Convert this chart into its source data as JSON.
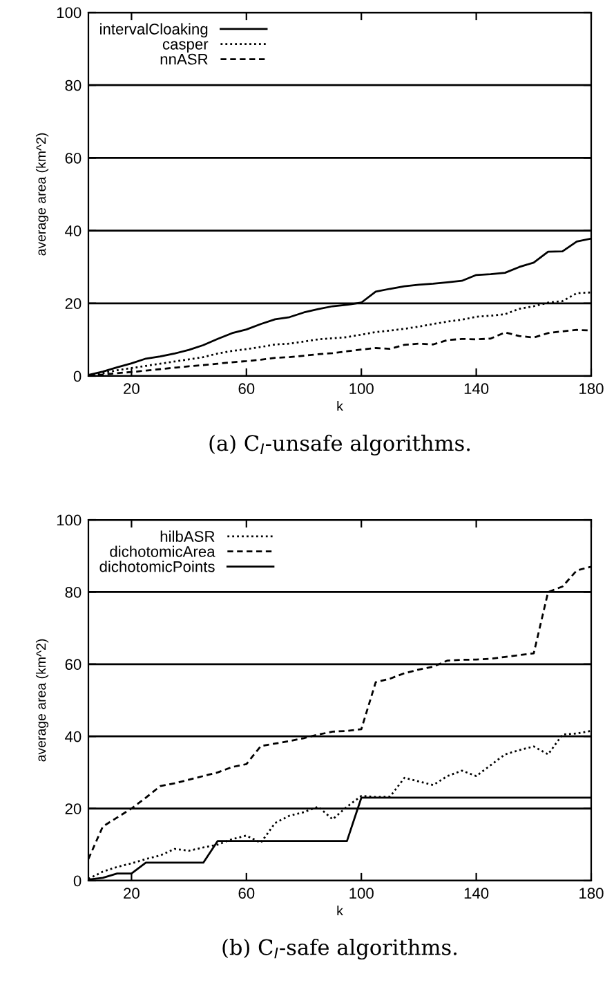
{
  "chart_data": [
    {
      "type": "line",
      "title": "(a) C$_{I}$-unsafe algorithms.",
      "xlabel": "k",
      "ylabel": "average area (km^2)",
      "x": [
        5,
        10,
        15,
        20,
        25,
        30,
        35,
        40,
        45,
        50,
        55,
        60,
        65,
        70,
        75,
        80,
        85,
        90,
        95,
        100,
        105,
        110,
        115,
        120,
        125,
        130,
        135,
        140,
        145,
        150,
        155,
        160,
        165,
        170,
        175,
        180
      ],
      "xlim": [
        5,
        180
      ],
      "ylim": [
        0,
        100
      ],
      "xticks": [
        20,
        60,
        100,
        140,
        180
      ],
      "yticks": [
        0,
        20,
        40,
        60,
        80,
        100
      ],
      "grid": "y",
      "legend": "top left",
      "series": [
        {
          "name": "intervalCloaking",
          "color": "#000000",
          "line_style": "solid",
          "values": [
            0.3,
            1.2,
            2.4,
            3.5,
            4.8,
            5.4,
            6.2,
            7.2,
            8.5,
            10.2,
            11.8,
            12.8,
            14.3,
            15.6,
            16.2,
            17.5,
            18.4,
            19.2,
            19.6,
            20.2,
            23.2,
            24,
            24.7,
            25.1,
            25.4,
            25.8,
            26.2,
            27.8,
            28,
            28.4,
            30,
            31.2,
            34.2,
            34.3,
            37,
            37.8
          ]
        },
        {
          "name": "casper",
          "color": "#000000",
          "line_style": "dotted",
          "values": [
            0.2,
            0.8,
            1.6,
            2.2,
            2.8,
            3.4,
            4,
            4.6,
            5.2,
            6.2,
            6.9,
            7.4,
            8,
            8.7,
            8.9,
            9.5,
            10.1,
            10.4,
            10.7,
            11.4,
            12.1,
            12.5,
            13,
            13.6,
            14.3,
            15,
            15.5,
            16.3,
            16.6,
            17,
            18.5,
            19.2,
            20.2,
            20.6,
            22.8,
            23
          ]
        },
        {
          "name": "nnASR",
          "color": "#000000",
          "line_style": "dashed",
          "values": [
            0.1,
            0.4,
            0.8,
            1.1,
            1.5,
            1.9,
            2.3,
            2.7,
            3,
            3.4,
            3.8,
            4.1,
            4.5,
            5,
            5.2,
            5.6,
            6,
            6.3,
            6.8,
            7.3,
            7.7,
            7.5,
            8.6,
            8.9,
            8.7,
            9.9,
            10.2,
            10.1,
            10.3,
            12,
            11,
            10.6,
            11.8,
            12.3,
            12.7,
            12.5
          ]
        }
      ]
    },
    {
      "type": "line",
      "title": "(b) C$_{I}$-safe algorithms.",
      "xlabel": "k",
      "ylabel": "average area (km^2)",
      "x": [
        5,
        10,
        15,
        20,
        25,
        30,
        35,
        40,
        45,
        50,
        55,
        60,
        65,
        70,
        75,
        80,
        85,
        90,
        95,
        100,
        105,
        110,
        115,
        120,
        125,
        130,
        135,
        140,
        145,
        150,
        155,
        160,
        165,
        170,
        175,
        180
      ],
      "xlim": [
        5,
        180
      ],
      "ylim": [
        0,
        100
      ],
      "xticks": [
        20,
        60,
        100,
        140,
        180
      ],
      "yticks": [
        0,
        20,
        40,
        60,
        80,
        100
      ],
      "grid": "y",
      "legend": "top left",
      "series": [
        {
          "name": "hilbASR",
          "color": "#000000",
          "line_style": "dotted",
          "values": [
            0.5,
            2.5,
            3.8,
            4.8,
            6,
            7,
            8.8,
            8.3,
            9.2,
            10,
            11.5,
            12.5,
            10.5,
            16,
            18,
            19,
            20.5,
            17,
            20.5,
            23.5,
            23.2,
            23.3,
            28.5,
            27.5,
            26.5,
            29,
            30.5,
            29,
            32,
            35,
            36.2,
            37.2,
            35,
            40.5,
            40.8,
            41.5
          ]
        },
        {
          "name": "dichotomicArea",
          "color": "#000000",
          "line_style": "dashed",
          "values": [
            6,
            15,
            17.5,
            20,
            23,
            26.2,
            27,
            28,
            29,
            30,
            31.5,
            32.3,
            37.3,
            38,
            38.7,
            39.5,
            40.5,
            41.3,
            41.5,
            42,
            55,
            56,
            57.5,
            58.5,
            59.3,
            61,
            61.2,
            61.3,
            61.5,
            62,
            62.5,
            63,
            80,
            81.5,
            86,
            87
          ]
        },
        {
          "name": "dichotomicPoints",
          "color": "#000000",
          "line_style": "solid",
          "values": [
            0.3,
            0.8,
            2,
            2,
            5,
            5,
            5,
            5,
            5,
            11,
            11,
            11,
            11,
            11,
            11,
            11,
            11,
            11,
            11,
            23,
            23,
            23,
            23,
            23,
            23,
            23,
            23,
            23,
            23,
            23,
            23,
            23,
            23,
            23,
            23,
            23
          ]
        }
      ]
    }
  ]
}
